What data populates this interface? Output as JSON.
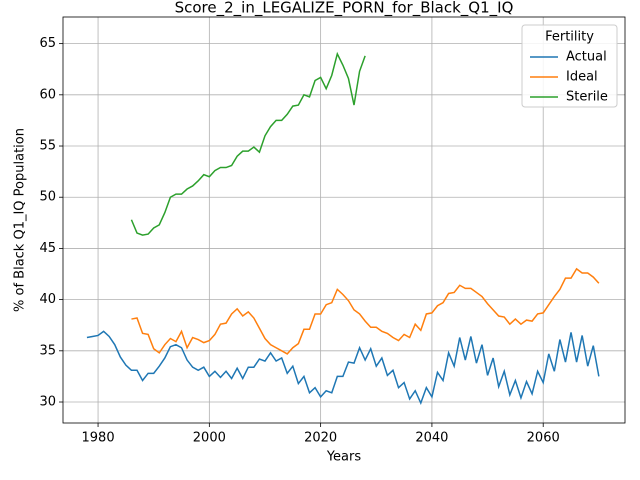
{
  "chart_data": {
    "type": "line",
    "title": "Score_2_in_LEGALIZE_PORN_for_Black_Q1_IQ",
    "xlabel": "Years",
    "ylabel": "% of Black Q1_IQ Population",
    "legend_title": "Fertility",
    "legend": "upper right",
    "grid": true,
    "xlim": [
      1973.7,
      2074.7
    ],
    "ylim": [
      27.95,
      67.6
    ],
    "xticks": [
      1980,
      2000,
      2020,
      2040,
      2060
    ],
    "yticks": [
      30,
      35,
      40,
      45,
      50,
      55,
      60,
      65
    ],
    "series": [
      {
        "name": "Actual",
        "color": "#1f77b4",
        "x": [
          1978,
          1979,
          1980,
          1981,
          1982,
          1983,
          1984,
          1985,
          1986,
          1987,
          1988,
          1989,
          1990,
          1991,
          1992,
          1993,
          1994,
          1995,
          1996,
          1997,
          1998,
          1999,
          2000,
          2001,
          2002,
          2003,
          2004,
          2005,
          2006,
          2007,
          2008,
          2009,
          2010,
          2011,
          2012,
          2013,
          2014,
          2015,
          2016,
          2017,
          2018,
          2019,
          2020,
          2021,
          2022,
          2023,
          2024,
          2025,
          2026,
          2027,
          2028,
          2029,
          2030,
          2031,
          2032,
          2033,
          2034,
          2035,
          2036,
          2037,
          2038,
          2039,
          2040,
          2041,
          2042,
          2043,
          2044,
          2045,
          2046,
          2047,
          2048,
          2049,
          2050,
          2051,
          2052,
          2053,
          2054,
          2055,
          2056,
          2057,
          2058,
          2059,
          2060,
          2061,
          2062,
          2063,
          2064,
          2065,
          2066,
          2067,
          2068,
          2069,
          2070
        ],
        "values": [
          36.3,
          36.4,
          36.5,
          36.9,
          36.4,
          35.6,
          34.4,
          33.6,
          33.1,
          33.1,
          32.1,
          32.8,
          32.8,
          33.5,
          34.3,
          35.4,
          35.6,
          35.3,
          34.1,
          33.4,
          33.1,
          33.4,
          32.5,
          33.0,
          32.4,
          33.0,
          32.3,
          33.3,
          32.3,
          33.4,
          33.4,
          34.2,
          34.0,
          34.8,
          34.0,
          34.3,
          32.8,
          33.5,
          31.8,
          32.5,
          30.9,
          31.4,
          30.5,
          31.1,
          30.9,
          32.5,
          32.5,
          33.9,
          33.8,
          35.3,
          34.1,
          35.2,
          33.5,
          34.3,
          32.6,
          33.1,
          31.4,
          31.9,
          30.3,
          31.1,
          29.9,
          31.4,
          30.5,
          32.9,
          32.1,
          34.8,
          33.5,
          36.3,
          34.1,
          36.4,
          33.8,
          35.6,
          32.6,
          34.3,
          31.5,
          33.0,
          30.7,
          32.1,
          30.4,
          32.0,
          30.8,
          33.0,
          31.9,
          34.7,
          33.0,
          36.1,
          33.9,
          36.8,
          33.9,
          36.5,
          33.5,
          35.5,
          32.5
        ]
      },
      {
        "name": "Ideal",
        "color": "#ff7f0e",
        "x": [
          1986,
          1987,
          1988,
          1989,
          1990,
          1991,
          1992,
          1993,
          1994,
          1995,
          1996,
          1997,
          1998,
          1999,
          2000,
          2001,
          2002,
          2003,
          2004,
          2005,
          2006,
          2007,
          2008,
          2009,
          2010,
          2011,
          2012,
          2013,
          2014,
          2015,
          2016,
          2017,
          2018,
          2019,
          2020,
          2021,
          2022,
          2023,
          2024,
          2025,
          2026,
          2027,
          2028,
          2029,
          2030,
          2031,
          2032,
          2033,
          2034,
          2035,
          2036,
          2037,
          2038,
          2039,
          2040,
          2041,
          2042,
          2043,
          2044,
          2045,
          2046,
          2047,
          2048,
          2049,
          2050,
          2051,
          2052,
          2053,
          2054,
          2055,
          2056,
          2057,
          2058,
          2059,
          2060,
          2061,
          2062,
          2063,
          2064,
          2065,
          2066,
          2067,
          2068,
          2069,
          2070
        ],
        "values": [
          38.1,
          38.2,
          36.7,
          36.6,
          35.2,
          34.8,
          35.6,
          36.2,
          35.9,
          36.9,
          35.3,
          36.3,
          36.1,
          35.8,
          36.0,
          36.6,
          37.6,
          37.7,
          38.6,
          39.1,
          38.4,
          38.8,
          38.2,
          37.2,
          36.2,
          35.6,
          35.3,
          35.0,
          34.7,
          35.3,
          35.7,
          37.1,
          37.1,
          38.6,
          38.6,
          39.5,
          39.7,
          41.0,
          40.5,
          39.9,
          39.0,
          38.6,
          37.9,
          37.3,
          37.3,
          36.9,
          36.7,
          36.3,
          36.0,
          36.6,
          36.3,
          37.6,
          37.0,
          38.6,
          38.7,
          39.4,
          39.7,
          40.6,
          40.7,
          41.4,
          41.1,
          41.1,
          40.7,
          40.3,
          39.6,
          39.0,
          38.4,
          38.3,
          37.6,
          38.1,
          37.6,
          38.0,
          37.9,
          38.6,
          38.7,
          39.5,
          40.3,
          41.0,
          42.1,
          42.1,
          43.0,
          42.6,
          42.6,
          42.2,
          41.6
        ]
      },
      {
        "name": "Sterile",
        "color": "#2ca02c",
        "x": [
          1986,
          1987,
          1988,
          1989,
          1990,
          1991,
          1992,
          1993,
          1994,
          1995,
          1996,
          1997,
          1998,
          1999,
          2000,
          2001,
          2002,
          2003,
          2004,
          2005,
          2006,
          2007,
          2008,
          2009,
          2010,
          2011,
          2012,
          2013,
          2014,
          2015,
          2016,
          2017,
          2018,
          2019,
          2020,
          2021,
          2022,
          2023,
          2024,
          2025,
          2026,
          2027,
          2028
        ],
        "values": [
          47.8,
          46.5,
          46.3,
          46.4,
          47.0,
          47.3,
          48.5,
          50.0,
          50.3,
          50.3,
          50.8,
          51.1,
          51.6,
          52.2,
          52.0,
          52.6,
          52.9,
          52.9,
          53.1,
          54.0,
          54.5,
          54.5,
          54.9,
          54.4,
          56.0,
          56.9,
          57.5,
          57.5,
          58.1,
          58.9,
          59.0,
          60.0,
          59.8,
          61.4,
          61.7,
          60.6,
          61.9,
          64.0,
          62.9,
          61.6,
          59.0,
          62.3,
          63.8
        ]
      }
    ]
  }
}
